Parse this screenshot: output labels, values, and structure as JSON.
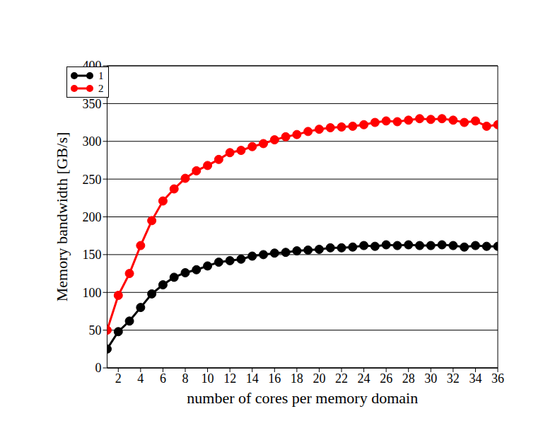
{
  "chart_data": {
    "type": "line",
    "x_label": "number of cores per memory domain",
    "y_label": "Memory bandwidth [GB/s]",
    "x": [
      1,
      2,
      3,
      4,
      5,
      6,
      7,
      8,
      9,
      10,
      11,
      12,
      13,
      14,
      15,
      16,
      17,
      18,
      19,
      20,
      21,
      22,
      23,
      24,
      25,
      26,
      27,
      28,
      29,
      30,
      31,
      32,
      33,
      34,
      35,
      36
    ],
    "series": [
      {
        "name": "1",
        "color": "#000000",
        "marker": "circle",
        "values": [
          25,
          48,
          62,
          80,
          98,
          110,
          120,
          126,
          130,
          135,
          140,
          142,
          144,
          148,
          150,
          152,
          153,
          155,
          156,
          157,
          159,
          159,
          160,
          162,
          161,
          163,
          162,
          163,
          162,
          162,
          163,
          162,
          160,
          162,
          161,
          161
        ]
      },
      {
        "name": "2",
        "color": "#ff0000",
        "marker": "circle",
        "values": [
          50,
          96,
          125,
          162,
          195,
          221,
          237,
          251,
          261,
          268,
          276,
          285,
          288,
          293,
          297,
          302,
          306,
          309,
          313,
          316,
          318,
          319,
          320,
          322,
          325,
          327,
          326,
          328,
          330,
          329,
          330,
          328,
          325,
          327,
          320,
          322
        ]
      }
    ],
    "xlim": [
      1,
      36
    ],
    "xticks": [
      2,
      4,
      6,
      8,
      10,
      12,
      14,
      16,
      18,
      20,
      22,
      24,
      26,
      28,
      30,
      32,
      34,
      36
    ],
    "ylim": [
      0,
      400
    ],
    "yticks": [
      0,
      50,
      100,
      150,
      200,
      250,
      300,
      350,
      400
    ],
    "grid": true,
    "legend": "upper left"
  }
}
